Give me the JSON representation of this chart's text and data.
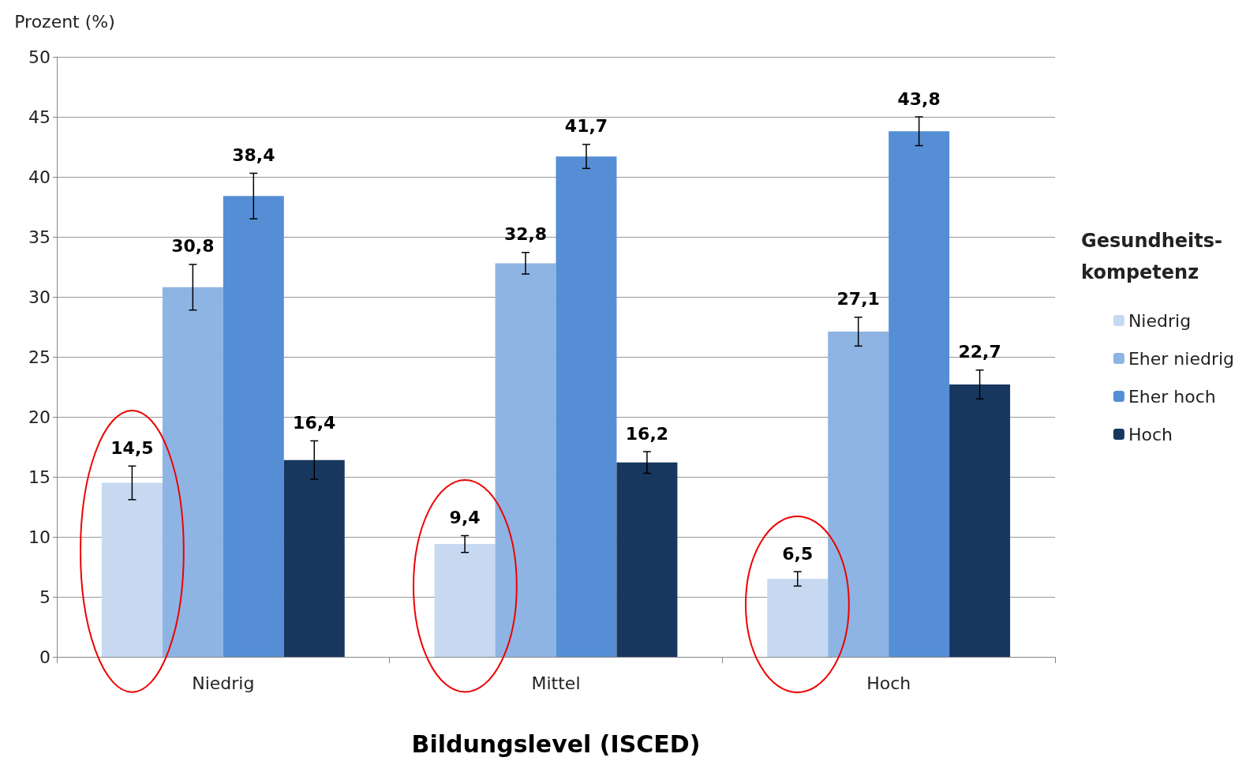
{
  "chart_data": {
    "type": "bar",
    "xlabel": "Bildungslevel (ISCED)",
    "ylabel": "Prozent (%)",
    "legend_title": "Gesundheits-\nkompetenz",
    "categories": [
      "Niedrig",
      "Mittel",
      "Hoch"
    ],
    "series": [
      {
        "name": "Niedrig",
        "color": "#c6d9f1",
        "values": [
          14.5,
          9.4,
          6.5
        ],
        "value_labels": [
          "14,5",
          "9,4",
          "6,5"
        ],
        "errors": [
          1.4,
          0.7,
          0.6
        ]
      },
      {
        "name": "Eher niedrig",
        "color": "#8eb4e3",
        "values": [
          30.8,
          32.8,
          27.1
        ],
        "value_labels": [
          "30,8",
          "32,8",
          "27,1"
        ],
        "errors": [
          1.9,
          0.9,
          1.2
        ]
      },
      {
        "name": "Eher hoch",
        "color": "#558ed5",
        "values": [
          38.4,
          41.7,
          43.8
        ],
        "value_labels": [
          "38,4",
          "41,7",
          "43,8"
        ],
        "errors": [
          1.9,
          1.0,
          1.2
        ]
      },
      {
        "name": "Hoch",
        "color": "#17375e",
        "values": [
          16.4,
          16.2,
          22.7
        ],
        "value_labels": [
          "16,4",
          "16,2",
          "22,7"
        ],
        "errors": [
          1.6,
          0.9,
          1.2
        ]
      }
    ],
    "ylim": [
      0,
      50
    ],
    "yticks": [
      0,
      5,
      10,
      15,
      20,
      25,
      30,
      35,
      40,
      45,
      50
    ],
    "grid": "y",
    "legend": "right"
  }
}
